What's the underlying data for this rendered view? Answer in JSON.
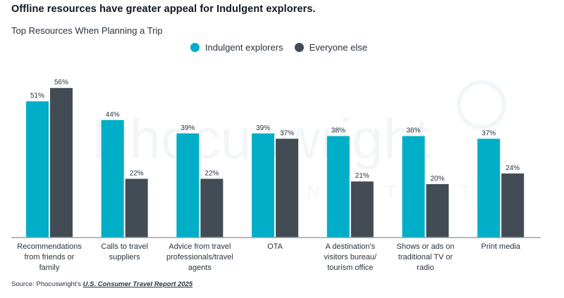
{
  "header": {
    "title": "Offline resources have greater appeal for Indulgent explorers.",
    "subtitle": "Top Resources When Planning a Trip"
  },
  "watermark": {
    "brand": "Phocuswright",
    "tag": "NORTHSTAR"
  },
  "source": {
    "prefix": "Source: Phocuswright's ",
    "report": "U.S. Consumer Travel Report 2025"
  },
  "colors": {
    "indulgent": "#00aec7",
    "everyone": "#434c55",
    "axis": "#9aa3ab"
  },
  "chart_data": {
    "type": "bar",
    "title": "Offline resources have greater appeal for Indulgent explorers.",
    "subtitle": "Top Resources When Planning a Trip",
    "xlabel": "",
    "ylabel": "",
    "ylim": [
      0,
      60
    ],
    "grid": false,
    "legend_position": "top-center",
    "categories": [
      "Recommendations from friends or family",
      "Calls to travel suppliers",
      "Advice from travel professionals/travel agents",
      "OTA",
      "A destination's visitors bureau/ tourism office",
      "Shows or ads on traditional TV or radio",
      "Print media"
    ],
    "category_lines": [
      [
        "Recommendations",
        "from friends or",
        "family"
      ],
      [
        "Calls to travel",
        "suppliers"
      ],
      [
        "Advice from travel",
        "professionals/travel",
        "agents"
      ],
      [
        "OTA"
      ],
      [
        "A destination's",
        "visitors bureau/",
        "tourism office"
      ],
      [
        "Shows or ads on",
        "traditional TV or",
        "radio"
      ],
      [
        "Print media"
      ]
    ],
    "series": [
      {
        "name": "Indulgent explorers",
        "values": [
          51,
          44,
          39,
          39,
          38,
          38,
          37
        ]
      },
      {
        "name": "Everyone else",
        "values": [
          56,
          22,
          22,
          37,
          21,
          20,
          24
        ]
      }
    ],
    "value_suffix": "%"
  }
}
